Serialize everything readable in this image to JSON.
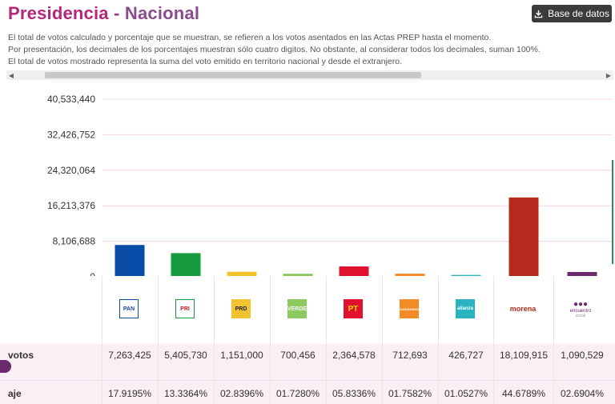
{
  "header": {
    "title_main": "Presidencia",
    "title_sep": "-",
    "title_sub": "Nacional",
    "db_button_label": "Base de datos"
  },
  "notes": [
    "El total de votos calculado y porcentaje que se muestran, se refieren a los votos asentados en las Actas PREP hasta el momento.",
    "Por presentación, los decimales de los porcentajes muestran sólo cuatro digitos. No obstante, al considerar todos los decimales, suman 100%.",
    "El total de votos mostrado representa la suma del voto emitido en territorio nacional y desde el extranjero."
  ],
  "chart_data": {
    "type": "bar",
    "title": "",
    "xlabel": "",
    "ylabel": "",
    "ylim": [
      0,
      40533440
    ],
    "yticks": [
      0,
      8106688,
      16213376,
      24320064,
      32426752,
      40533440
    ],
    "ytick_labels": [
      "0",
      "8,106,688",
      "16,213,376",
      "24,320,064",
      "32,426,752",
      "40,533,440"
    ],
    "categories": [
      "PAN",
      "PRI",
      "PRD",
      "VERDE",
      "PT",
      "MOVIMIENTO CIUDADANO",
      "NUEVA ALIANZA",
      "MORENA",
      "ENCUENTRO SOCIAL"
    ],
    "values": [
      7263425,
      5405730,
      1151000,
      700456,
      2364578,
      712693,
      426727,
      18109915,
      1090529
    ],
    "colors": [
      "#0a4da8",
      "#159a3e",
      "#f2c230",
      "#8cc95e",
      "#e0102f",
      "#f28a25",
      "#29b4c0",
      "#b52a1c",
      "#6b2a6e"
    ]
  },
  "table": {
    "votes_label": "votos",
    "pct_label": "aje",
    "votes": [
      "7,263,425",
      "5,405,730",
      "1,151,000",
      "700,456",
      "2,364,578",
      "712,693",
      "426,727",
      "18,109,915",
      "1,090,529"
    ],
    "pcts": [
      "17.9195%",
      "13.3364%",
      "02.8396%",
      "01.7280%",
      "05.8336%",
      "01.7582%",
      "01.0527%",
      "44.6789%",
      "02.6904%"
    ]
  },
  "logos": {
    "pan": "PAN",
    "pri": "PRI",
    "prd": "PRD",
    "verde": "VERDE",
    "pt": "PT",
    "mc": "CIUDADANO",
    "na": "alianza",
    "morena": "morena",
    "pes": "encuentro",
    "pes_sub": "social"
  },
  "icons": {
    "download": "download-icon",
    "scroll_left": "chevron-left-icon",
    "scroll_right": "chevron-right-icon"
  }
}
